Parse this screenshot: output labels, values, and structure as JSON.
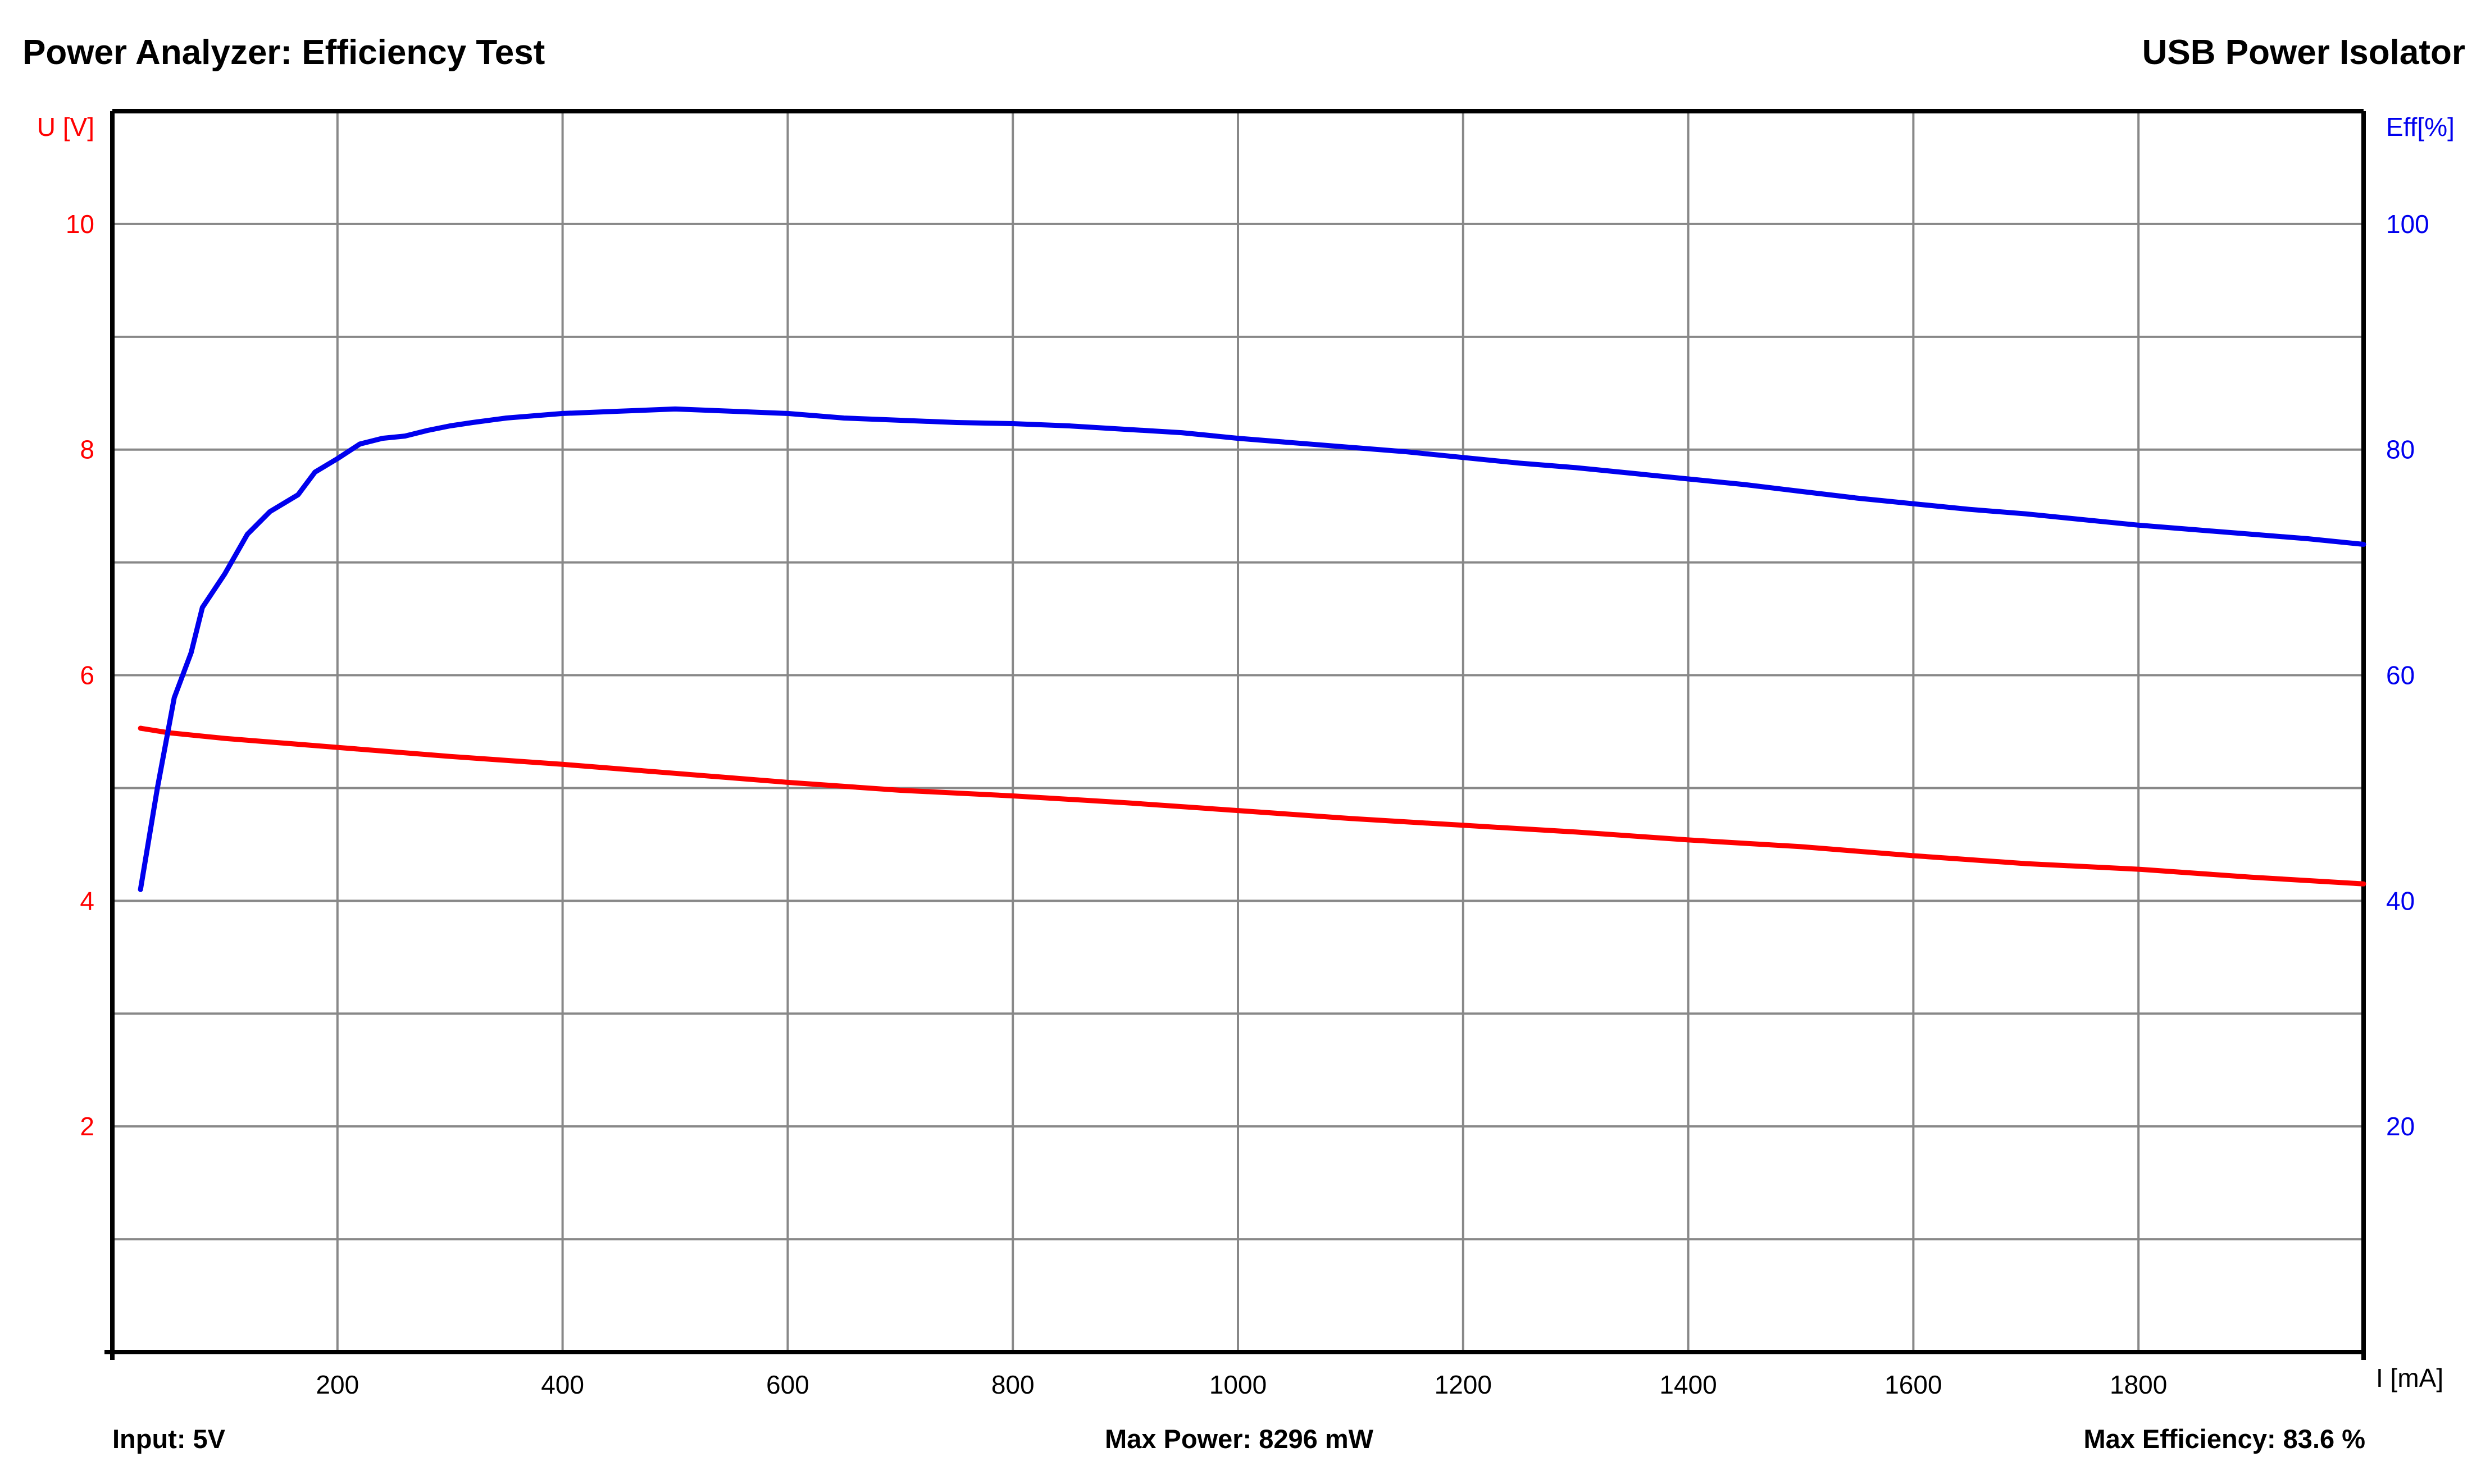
{
  "header": {
    "title_left": "Power Analyzer: Efficiency Test",
    "title_right": "USB Power Isolator"
  },
  "footer": {
    "input": "Input: 5V",
    "max_power": "Max Power: 8296 mW",
    "max_efficiency": "Max Efficiency: 83.6 %"
  },
  "colors": {
    "voltage": "#ff0000",
    "efficiency": "#0000ee",
    "grid": "#888888",
    "frame": "#000000"
  },
  "chart_data": {
    "type": "line",
    "title": "Power Analyzer: Efficiency Test",
    "xlabel": "I [mA]",
    "y_left_label": "U [V]",
    "y_right_label": "Eff[%]",
    "xlim": [
      0,
      2000
    ],
    "y_left_lim": [
      0,
      11
    ],
    "y_right_lim": [
      0,
      110
    ],
    "x_ticks": [
      200,
      400,
      600,
      800,
      1000,
      1200,
      1400,
      1600,
      1800
    ],
    "y_left_ticks": [
      2,
      4,
      6,
      8,
      10
    ],
    "y_right_ticks": [
      20,
      40,
      60,
      80,
      100
    ],
    "grid": true,
    "series": [
      {
        "name": "U [V]",
        "axis": "left",
        "color": "#ff0000",
        "x": [
          25,
          50,
          100,
          150,
          200,
          300,
          400,
          500,
          600,
          700,
          800,
          900,
          1000,
          1100,
          1200,
          1300,
          1400,
          1500,
          1600,
          1700,
          1800,
          1900,
          2000
        ],
        "y": [
          5.53,
          5.49,
          5.44,
          5.4,
          5.36,
          5.28,
          5.21,
          5.13,
          5.05,
          4.98,
          4.93,
          4.87,
          4.8,
          4.73,
          4.67,
          4.61,
          4.54,
          4.48,
          4.4,
          4.33,
          4.28,
          4.21,
          4.15
        ]
      },
      {
        "name": "Eff[%]",
        "axis": "right",
        "color": "#0000ee",
        "x": [
          25,
          40,
          55,
          70,
          80,
          100,
          120,
          140,
          165,
          180,
          200,
          220,
          240,
          260,
          280,
          300,
          320,
          350,
          400,
          450,
          500,
          550,
          600,
          650,
          700,
          750,
          800,
          850,
          900,
          950,
          1000,
          1050,
          1100,
          1150,
          1200,
          1250,
          1300,
          1350,
          1400,
          1450,
          1500,
          1550,
          1600,
          1650,
          1700,
          1750,
          1800,
          1850,
          1900,
          1950,
          2000
        ],
        "y": [
          41,
          50,
          58,
          62,
          66,
          69,
          72.5,
          74.5,
          76,
          78,
          79.2,
          80.5,
          81,
          81.2,
          81.7,
          82.1,
          82.4,
          82.8,
          83.2,
          83.4,
          83.6,
          83.4,
          83.2,
          82.8,
          82.6,
          82.4,
          82.3,
          82.1,
          81.8,
          81.5,
          81,
          80.6,
          80.2,
          79.8,
          79.3,
          78.8,
          78.4,
          77.9,
          77.4,
          76.9,
          76.3,
          75.7,
          75.2,
          74.7,
          74.3,
          73.8,
          73.3,
          72.9,
          72.5,
          72.1,
          71.6
        ]
      }
    ]
  }
}
